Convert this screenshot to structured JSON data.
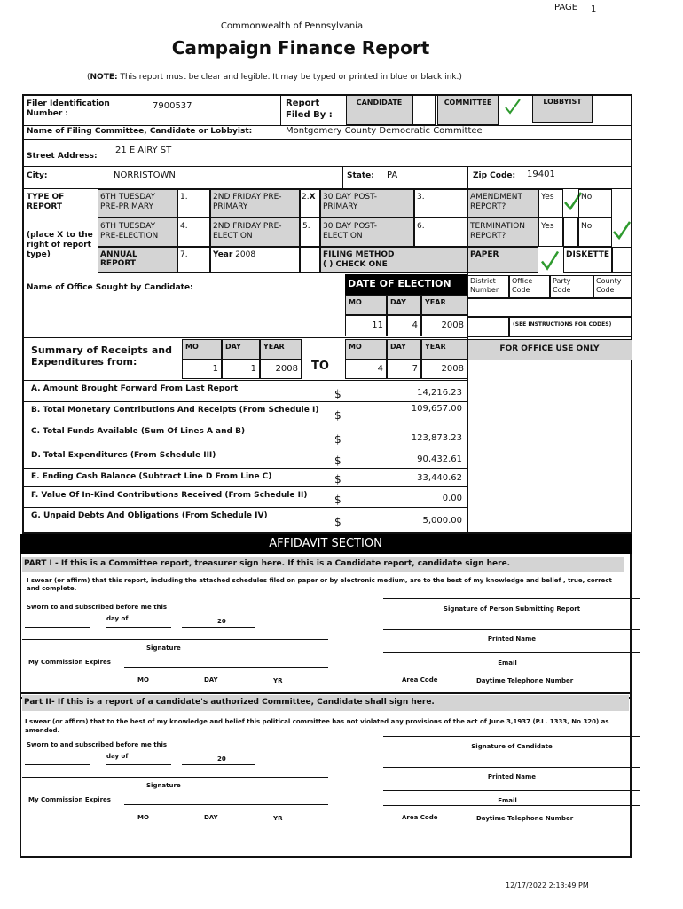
{
  "header": {
    "page_label": "PAGE",
    "page_number": "1",
    "state": "Commonwealth of Pennsylvania",
    "title": "Campaign Finance Report",
    "note_bold": "NOTE:",
    "note": "This report must be clear and legible. It may be typed or printed in blue or black ink.)",
    "note_open": "("
  },
  "filer": {
    "id_label": "Filer Identification Number :",
    "id_value": "7900537",
    "filed_by_label": "Report Filed By :",
    "candidate": "CANDIDATE",
    "committee": "COMMITTEE",
    "lobbyist": "LOBBYIST",
    "committee_checked": true,
    "name_label": "Name of Filing Committee, Candidate or Lobbyist:",
    "name_value": "Montgomery County Democratic Committee",
    "street_label": "Street Address:",
    "street_value": "21 E AIRY ST",
    "city_label": "City:",
    "city_value": "NORRISTOWN",
    "state_label": "State:",
    "state_value": "PA",
    "zip_label": "Zip Code:",
    "zip_value": "19401"
  },
  "report_type": {
    "label": "TYPE OF REPORT",
    "hint": "(place X to the right of report type)",
    "t1": "6TH TUESDAY PRE-PRIMARY",
    "n1": "1.",
    "t2": "2ND FRIDAY PRE-PRIMARY",
    "n2": "2.",
    "x2": "X",
    "t3": "30 DAY POST-PRIMARY",
    "n3": "3.",
    "t4": "6TH TUESDAY PRE-ELECTION",
    "n4": "4.",
    "t5": "2ND FRIDAY PRE-ELECTION",
    "n5": "5.",
    "t6": "30 DAY POST-ELECTION",
    "n6": "6.",
    "t7": "ANNUAL REPORT",
    "n7": "7.",
    "year_label": "Year",
    "year_value": "2008",
    "amendment": "AMENDMENT REPORT?",
    "termination": "TERMINATION REPORT?",
    "yes": "Yes",
    "no": "No",
    "filing_method": "FILING METHOD",
    "check_one": "(   ) CHECK ONE",
    "paper": "PAPER",
    "diskette": "DISKETTE",
    "green": "#2e9a2e"
  },
  "office": {
    "name_label": "Name of Office Sought by Candidate:",
    "date_label": "DATE OF ELECTION",
    "mo": "MO",
    "day": "DAY",
    "year": "YEAR",
    "election_mo": "11",
    "election_day": "4",
    "election_year": "2008",
    "district": "District Number",
    "office_code": "Office Code",
    "party_code": "Party Code",
    "county_code": "County Code",
    "see_instructions": "(SEE INSTRUCTIONS FOR CODES)"
  },
  "summary": {
    "label": "Summary of Receipts and Expenditures from:",
    "from_mo": "1",
    "from_day": "1",
    "from_year": "2008",
    "to": "TO",
    "to_mo": "4",
    "to_day": "7",
    "to_year": "2008",
    "office_use": "FOR OFFICE USE ONLY",
    "currency": "$",
    "lines": [
      {
        "label": "A. Amount Brought Forward From Last Report",
        "value": "14,216.23"
      },
      {
        "label": "B. Total Monetary Contributions And Receipts (From Schedule I)",
        "value": "109,657.00"
      },
      {
        "label": "C. Total Funds Available (Sum Of Lines A and B)",
        "value": "123,873.23"
      },
      {
        "label": "D. Total Expenditures (From Schedule III)",
        "value": "90,432.61"
      },
      {
        "label": "E. Ending Cash Balance (Subtract Line D From Line C)",
        "value": "33,440.62"
      },
      {
        "label": "F. Value Of In-Kind Contributions Received (From Schedule II)",
        "value": "0.00"
      },
      {
        "label": "G. Unpaid Debts And Obligations (From Schedule IV)",
        "value": "5,000.00"
      }
    ]
  },
  "affidavit": {
    "title": "AFFIDAVIT SECTION",
    "p1_title": "PART I - If this is a Committee report, treasurer sign here. If this is a Candidate report, candidate sign here.",
    "p1_text": "I swear (or affirm) that this report, including the attached schedules filed on paper or by electronic medium, are to the best of my knowledge and belief , true, correct and complete.",
    "p2_title": "Part II- If this is a  report of a candidate's authorized Committee, Candidate shall sign here.",
    "p2_text": "I swear (or affirm) that  to the best of my knowledge and belief  this political  committee has not violated any provisions of the act of June 3,1937 (P.L. 1333, No 320) as amended.",
    "sworn": "Sworn to and subscribed before me this",
    "day_of": "day of",
    "twenty": "20",
    "signature": "Signature",
    "commission": "My Commission Expires",
    "mo": "MO",
    "day": "DAY",
    "yr": "YR",
    "sig_person": "Signature of Person Submitting Report",
    "sig_candidate": "Signature of Candidate",
    "printed_name": "Printed Name",
    "email": "Email",
    "area_code": "Area Code",
    "phone": "Daytime  Telephone Number"
  },
  "footer": {
    "timestamp": "12/17/2022 2:13:49 PM"
  }
}
